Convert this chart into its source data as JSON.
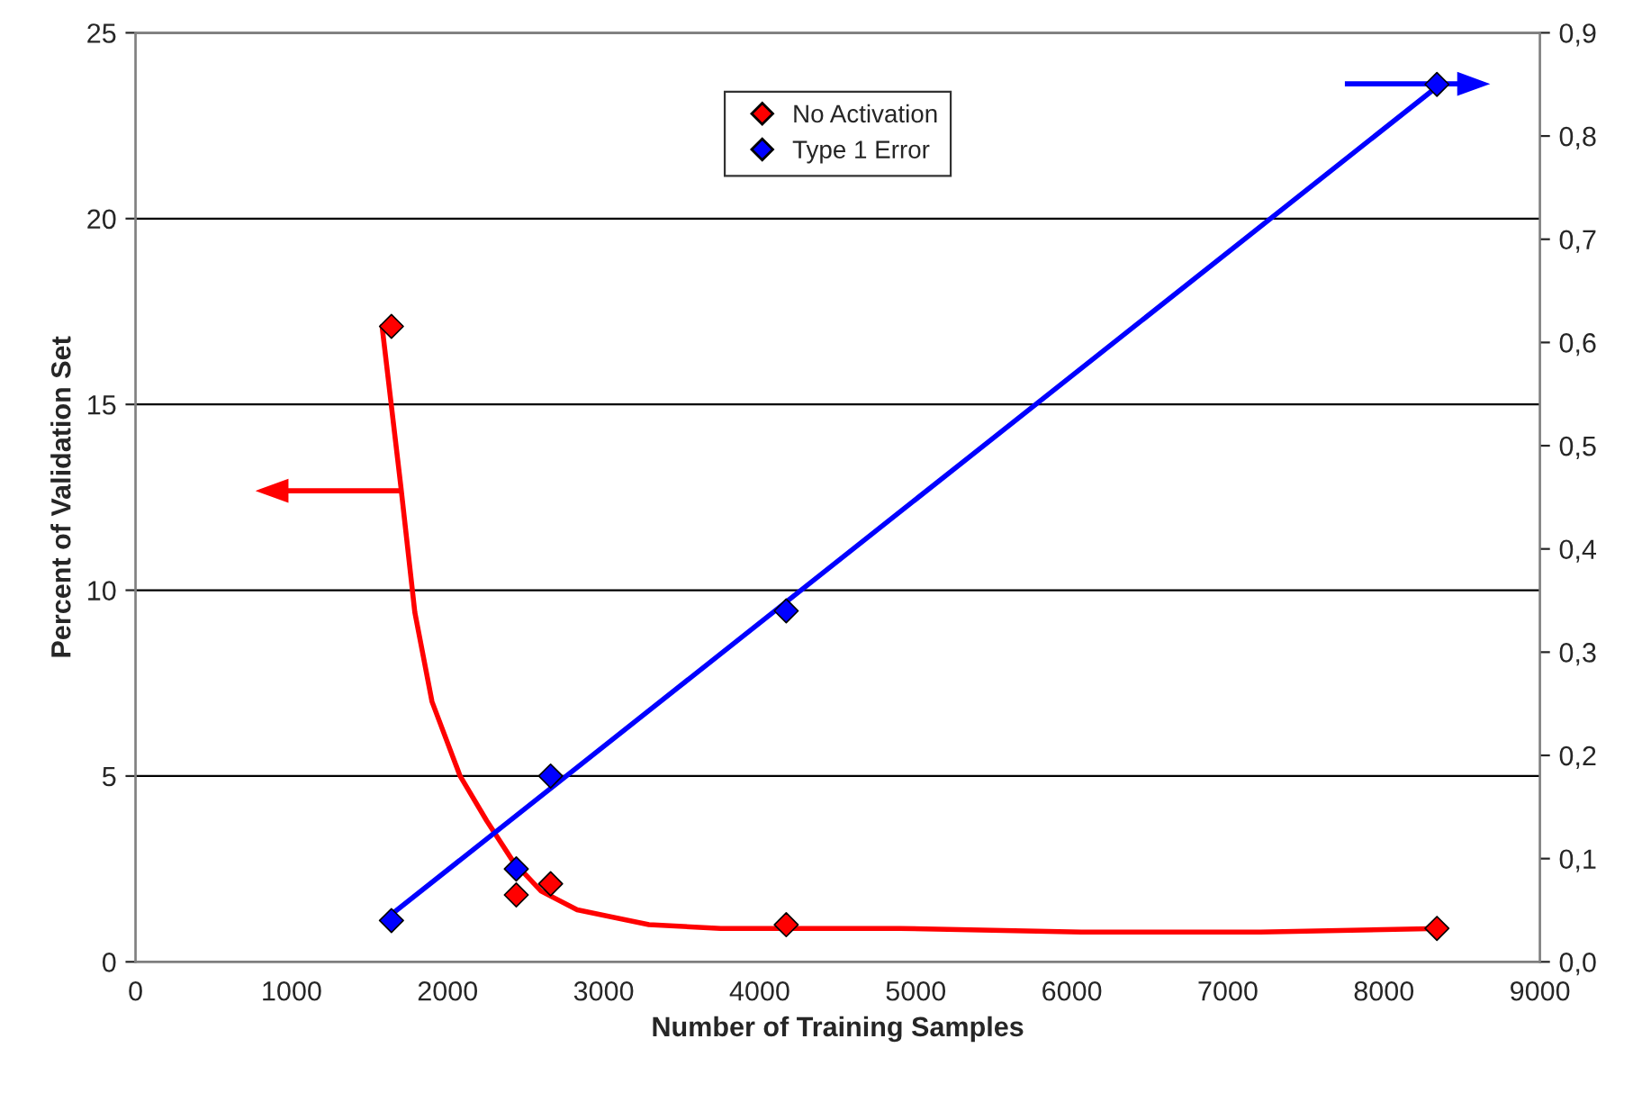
{
  "chart_data": {
    "type": "scatter",
    "xlabel": "Number of Training Samples",
    "ylabel": "Percent of Validation Set",
    "xlim": [
      0,
      9000
    ],
    "xticks": [
      0,
      1000,
      2000,
      3000,
      4000,
      5000,
      6000,
      7000,
      8000,
      9000
    ],
    "ylim": [
      0,
      25
    ],
    "yticks": [
      0,
      5,
      10,
      15,
      20,
      25
    ],
    "y2lim": [
      0,
      0.9
    ],
    "y2ticks": [
      {
        "value": 0,
        "label": "0,0"
      },
      {
        "value": 0.1,
        "label": "0,1"
      },
      {
        "value": 0.2,
        "label": "0,2"
      },
      {
        "value": 0.3,
        "label": "0,3"
      },
      {
        "value": 0.4,
        "label": "0,4"
      },
      {
        "value": 0.5,
        "label": "0,5"
      },
      {
        "value": 0.6,
        "label": "0,6"
      },
      {
        "value": 0.7,
        "label": "0,7"
      },
      {
        "value": 0.8,
        "label": "0,8"
      },
      {
        "value": 0.9,
        "label": "0,9"
      }
    ],
    "grid": "y",
    "legend": "top",
    "line_style": "solid",
    "series": [
      {
        "type": "line",
        "marker": "none",
        "color": "#ff0000",
        "x": [
          1580,
          1700,
          1790,
          1900,
          2080,
          2250,
          2420,
          2600,
          2830,
          3290,
          3750,
          4900,
          6060,
          7210,
          8360
        ],
        "values": [
          17.1,
          12.8,
          9.4,
          7.0,
          5.0,
          3.8,
          2.7,
          1.9,
          1.4,
          1.0,
          0.9,
          0.9,
          0.8,
          0.8,
          0.9
        ]
      },
      {
        "type": "line",
        "marker": "none",
        "color": "#0000ff",
        "axis": "y2",
        "x": [
          1590,
          8360
        ],
        "values": [
          0.04,
          0.85
        ]
      },
      {
        "name": "No Activation",
        "marker": "diamond",
        "color": "#ff0000",
        "x": [
          1640,
          2440,
          2660,
          4170,
          8340
        ],
        "values": [
          17.1,
          1.8,
          2.1,
          1.0,
          0.9
        ]
      },
      {
        "name": "Type 1 Error",
        "marker": "diamond",
        "color": "#0000ff",
        "axis": "y2",
        "x": [
          1640,
          2440,
          2660,
          4170,
          8340
        ],
        "values": [
          0.04,
          0.09,
          0.18,
          0.34,
          0.85
        ]
      }
    ]
  }
}
